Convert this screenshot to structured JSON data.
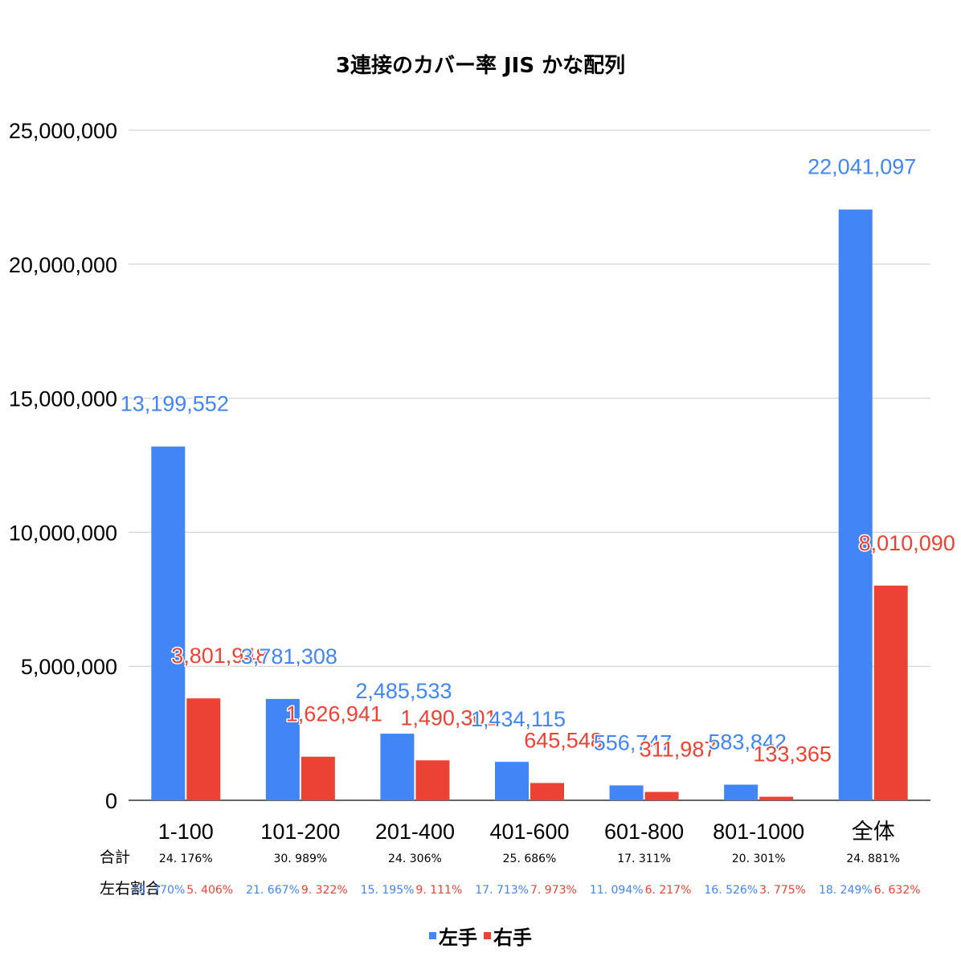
{
  "chart_data": {
    "type": "bar",
    "title": "3連接のカバー率 JIS かな配列",
    "categories": [
      "1-100",
      "101-200",
      "201-400",
      "401-600",
      "601-800",
      "801-1000",
      "全体"
    ],
    "series": [
      {
        "name": "左手",
        "color": "#4285f4",
        "values": [
          13199552,
          3781308,
          2485533,
          1434115,
          556747,
          583842,
          22041097
        ],
        "labels": [
          "13,199,552",
          "3,781,308",
          "2,485,533",
          "1,434,115",
          "556,747",
          "583,842",
          "22,041,097"
        ]
      },
      {
        "name": "右手",
        "color": "#ea4335",
        "values": [
          3801948,
          1626941,
          1490301,
          645548,
          311987,
          133365,
          8010090
        ],
        "labels": [
          "3,801,948",
          "1,626,941",
          "1,490,301",
          "645,548",
          "311,987",
          "133,365",
          "8,010,090"
        ]
      }
    ],
    "ylim": [
      0,
      25000000
    ],
    "yticks": [
      0,
      5000000,
      10000000,
      15000000,
      20000000,
      25000000
    ],
    "ytick_labels": [
      "0",
      "5,000,000",
      "10,000,000",
      "15,000,000",
      "20,000,000",
      "25,000,000"
    ],
    "grid": true,
    "legend_placement": "bottom",
    "annotations": {
      "total_label": "合計",
      "ratio_label": "左右割合",
      "totals": [
        "24. 176%",
        "30. 989%",
        "24. 306%",
        "25. 686%",
        "17. 311%",
        "20. 301%",
        "24. 881%"
      ],
      "left_ratios": [
        "18. 770%",
        "21. 667%",
        "15. 195%",
        "17. 713%",
        "11. 094%",
        "16. 526%",
        "18. 249%"
      ],
      "right_ratios": [
        "5. 406%",
        "9. 322%",
        "9. 111%",
        "7. 973%",
        "6. 217%",
        "3. 775%",
        "6. 632%"
      ]
    }
  }
}
